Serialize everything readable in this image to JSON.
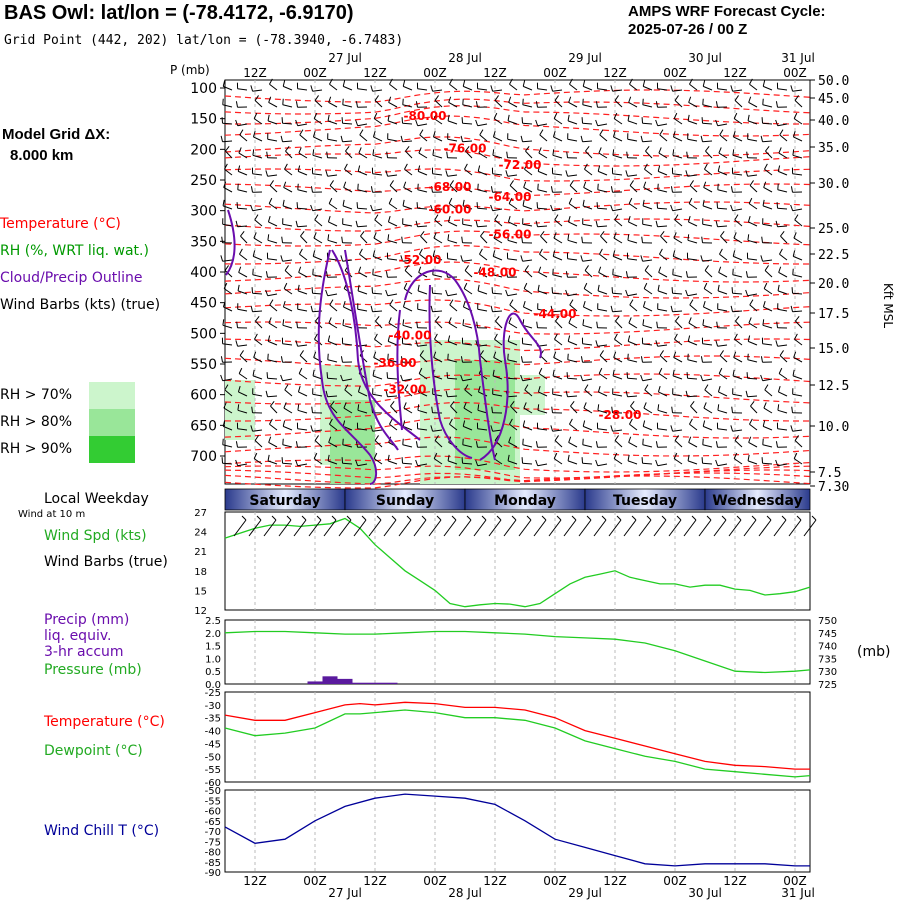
{
  "header": {
    "station": "BAS Owl:  lat/lon = (-78.4172, -6.9170)",
    "grid_point": "Grid Point (442, 202) lat/lon = (-78.3940, -6.7483)",
    "cycle_title": "AMPS WRF Forecast Cycle:",
    "cycle_value": "2025-07-26 / 00  Z"
  },
  "left": {
    "model_grid": "Model Grid ΔX:",
    "model_grid_value": "8.000 km",
    "temperature": "Temperature (°C)",
    "rh": "RH (%, WRT liq. wat.)",
    "cloud": "Cloud/Precip Outline",
    "wind_barbs": "Wind Barbs (kts) (true)",
    "rh70": "RH > 70%",
    "rh80": "RH > 80%",
    "rh90": "RH > 90%",
    "local_weekday": "Local Weekday",
    "wind_10m": "Wind at 10 m",
    "wind_spd": "Wind Spd (kts)",
    "wind_barbs2": "Wind Barbs (true)",
    "precip1": "Precip (mm)",
    "precip2": "liq. equiv.",
    "precip3": "3-hr accum",
    "pressure": "Pressure (mb)",
    "temperature2": "Temperature (°C)",
    "dewpoint": "Dewpoint (°C)",
    "windchill": "Wind Chill T (°C)"
  },
  "colors": {
    "temperature": "#ff0000",
    "rh_label": "#009900",
    "cloud": "#6a0dad",
    "green_line": "#22cc22",
    "navy": "#000099",
    "rh70": "#ccf5cc",
    "rh80": "#99e699",
    "rh90": "#33cc33"
  },
  "chart_data": [
    {
      "type": "line",
      "name": "time-height cross section",
      "p_label": "P (mb)",
      "kft_label": "Kft MSL",
      "pressure_levels": [
        100,
        150,
        200,
        250,
        300,
        350,
        400,
        450,
        500,
        550,
        600,
        650,
        700
      ],
      "kft_levels": [
        "50.0",
        "45.0",
        "40.0",
        "35.0",
        "30.0",
        "25.0",
        "22.5",
        "20.0",
        "17.5",
        "15.0",
        "12.5",
        "10.0",
        "7.5",
        "7.30"
      ],
      "top_time_labels": [
        "12Z",
        "00Z",
        "12Z",
        "00Z",
        "12Z",
        "00Z",
        "12Z",
        "00Z",
        "12Z",
        "00Z"
      ],
      "top_date_labels": [
        "27 Jul",
        "28 Jul",
        "29 Jul",
        "30 Jul",
        "31 Jul"
      ],
      "temperature_labels": [
        {
          "text": "-80.00",
          "t": 40,
          "p": 152
        },
        {
          "text": "-76.00",
          "t": 48,
          "p": 205
        },
        {
          "text": "-72.00",
          "t": 59,
          "p": 232
        },
        {
          "text": "-68.00",
          "t": 45,
          "p": 268
        },
        {
          "text": "-64.00",
          "t": 57,
          "p": 284
        },
        {
          "text": "-60.00",
          "t": 45,
          "p": 305
        },
        {
          "text": "-56.00",
          "t": 57,
          "p": 345
        },
        {
          "text": "-52.00",
          "t": 39,
          "p": 387
        },
        {
          "text": "-48.00",
          "t": 54,
          "p": 407
        },
        {
          "text": "-44.00",
          "t": 66,
          "p": 475
        },
        {
          "text": "-40.00",
          "t": 37,
          "p": 510
        },
        {
          "text": "-36.00",
          "t": 34,
          "p": 555
        },
        {
          "text": "-32.00",
          "t": 36,
          "p": 598
        },
        {
          "text": "-28.00",
          "t": 79,
          "p": 640
        }
      ]
    },
    {
      "type": "line",
      "name": "wind speed",
      "weekdays": [
        "Saturday",
        "Sunday",
        "Monday",
        "Tuesday",
        "Wednesday"
      ],
      "y_ticks": [
        12,
        15,
        18,
        21,
        24,
        27
      ],
      "ylim": [
        12,
        27
      ],
      "x_hours": [
        0,
        6,
        9,
        12,
        15,
        18,
        21,
        24,
        27,
        30,
        33,
        36,
        39,
        42,
        45,
        48,
        51,
        54,
        57,
        60,
        63,
        66,
        69,
        72,
        75,
        78,
        81,
        84,
        87,
        90,
        93,
        96,
        99,
        102,
        105,
        108,
        111,
        114,
        117
      ],
      "values": [
        23,
        24.5,
        25,
        25,
        24.8,
        25,
        25.2,
        26,
        24.5,
        22,
        20,
        18,
        16.5,
        15,
        13,
        12.5,
        12.8,
        13,
        12.9,
        12.5,
        13,
        14.5,
        16,
        17,
        17.5,
        18,
        17,
        16.5,
        16,
        16,
        15.5,
        15.8,
        15.8,
        15.2,
        15,
        14.3,
        14.5,
        14.8,
        15.5
      ]
    },
    {
      "type": "line",
      "name": "precip and pressure",
      "precip_ticks": [
        "2.5",
        "2.0",
        "1.5",
        "1.0",
        "0.5",
        "0.0"
      ],
      "pressure_ticks": [
        750,
        745,
        740,
        735,
        730,
        725
      ],
      "pressure_unit": "(mb)",
      "pressure_x": [
        0,
        6,
        12,
        18,
        24,
        30,
        36,
        42,
        48,
        54,
        60,
        66,
        72,
        78,
        84,
        90,
        96,
        102,
        108,
        114,
        117
      ],
      "pressure_values": [
        745,
        745.5,
        745.5,
        745,
        744.5,
        744.5,
        745,
        745.5,
        745.5,
        745,
        744.5,
        743.5,
        743,
        742.5,
        741,
        738,
        734,
        730,
        729.5,
        730,
        730.5
      ],
      "precip_bars": [
        {
          "x": 18,
          "v": 0.1
        },
        {
          "x": 21,
          "v": 0.3
        },
        {
          "x": 24,
          "v": 0.2
        },
        {
          "x": 27,
          "v": 0.05
        },
        {
          "x": 30,
          "v": 0.05
        },
        {
          "x": 33,
          "v": 0.05
        }
      ]
    },
    {
      "type": "line",
      "name": "temperature and dewpoint",
      "y_ticks": [
        -25,
        -30,
        -35,
        -40,
        -45,
        -50,
        -55,
        -60
      ],
      "ylim": [
        -60,
        -25
      ],
      "x": [
        0,
        6,
        12,
        18,
        24,
        27,
        30,
        36,
        42,
        48,
        54,
        60,
        66,
        72,
        78,
        84,
        90,
        96,
        102,
        108,
        114,
        117
      ],
      "temperature": [
        -34,
        -36,
        -36,
        -33,
        -30,
        -29.5,
        -30,
        -29,
        -29.5,
        -31,
        -31,
        -32,
        -35,
        -40,
        -43,
        -46,
        -49,
        -52,
        -53.5,
        -54,
        -55,
        -55
      ],
      "dewpoint": [
        -39,
        -42,
        -41,
        -39,
        -33.5,
        -33.5,
        -33,
        -32,
        -33,
        -35,
        -35,
        -36,
        -39,
        -44,
        -47,
        -50,
        -52,
        -55,
        -56,
        -57,
        -58,
        -57.5
      ]
    },
    {
      "type": "line",
      "name": "wind chill",
      "y_ticks": [
        -50,
        -55,
        -60,
        -65,
        -70,
        -75,
        -80,
        -85,
        -90
      ],
      "ylim": [
        -90,
        -50
      ],
      "x": [
        0,
        6,
        12,
        18,
        24,
        30,
        36,
        42,
        48,
        54,
        60,
        66,
        72,
        78,
        84,
        90,
        96,
        102,
        108,
        114,
        117
      ],
      "values": [
        -68,
        -76,
        -74,
        -65,
        -58,
        -54,
        -52,
        -53,
        -54,
        -57,
        -65,
        -74,
        -78,
        -82,
        -86,
        -87,
        -86,
        -86,
        -86,
        -87,
        -87
      ],
      "bottom_time_labels": [
        "12Z",
        "00Z",
        "12Z",
        "00Z",
        "12Z",
        "00Z",
        "12Z",
        "00Z",
        "12Z",
        "00Z"
      ],
      "bottom_date_labels": [
        "27 Jul",
        "28 Jul",
        "29 Jul",
        "30 Jul",
        "31 Jul"
      ]
    }
  ]
}
